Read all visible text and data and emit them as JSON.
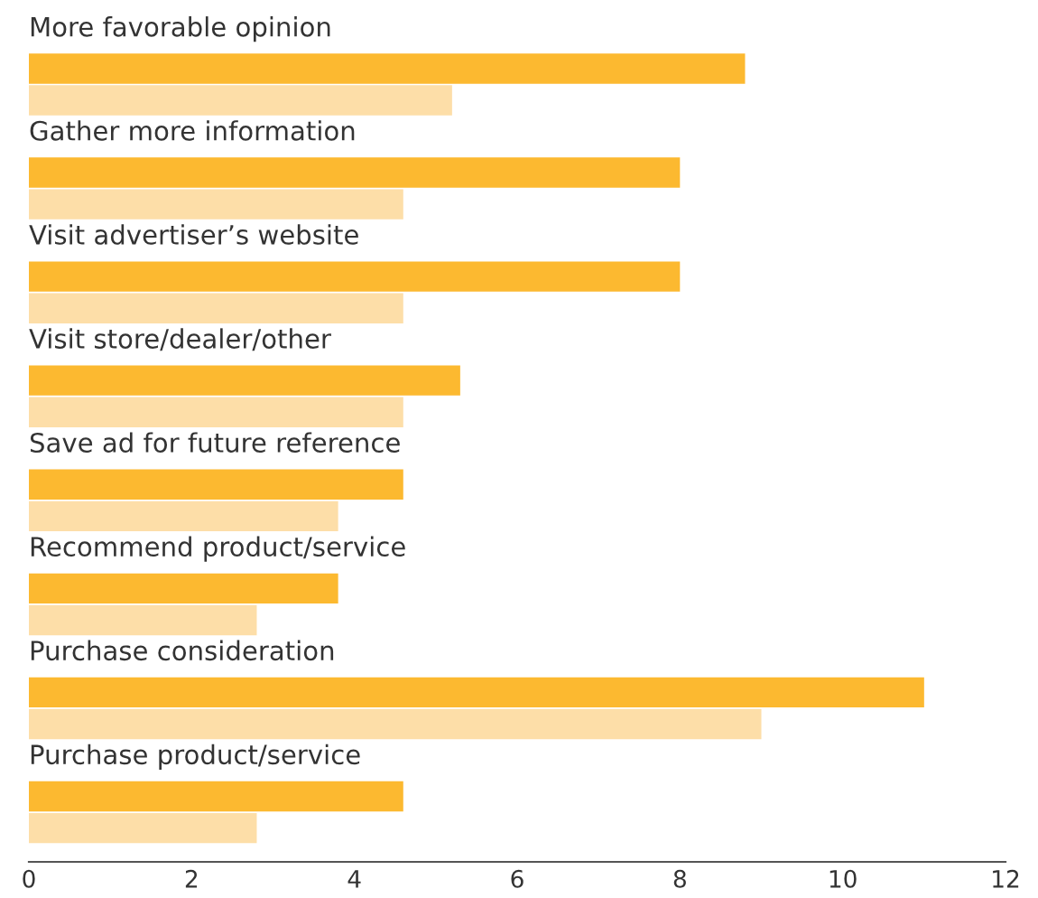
{
  "chart_data": {
    "type": "bar",
    "orientation": "horizontal",
    "categories": [
      "More favorable opinion",
      "Gather more information",
      "Visit advertiser’s website",
      "Visit store/dealer/other",
      "Save ad for future reference",
      "Recommend product/service",
      "Purchase consideration",
      "Purchase product/service"
    ],
    "series": [
      {
        "color": "#fcb930",
        "values": [
          8.8,
          8.0,
          8.0,
          5.3,
          4.6,
          3.8,
          11.0,
          4.6
        ]
      },
      {
        "color": "#fddea8",
        "values": [
          5.2,
          4.6,
          4.6,
          4.6,
          3.8,
          2.8,
          9.0,
          2.8
        ]
      }
    ],
    "xlim": [
      0,
      12
    ],
    "xticks": [
      0,
      2,
      4,
      6,
      8,
      10,
      12
    ],
    "grid": false,
    "legend": false
  }
}
